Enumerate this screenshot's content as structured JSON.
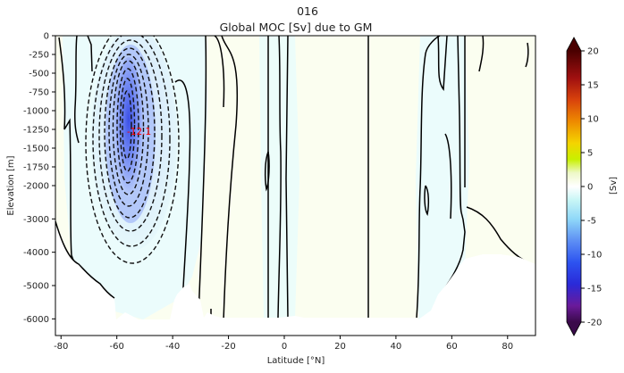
{
  "chart_data": {
    "type": "contour",
    "title_line1": "016",
    "title_line2": "Global MOC [Sv] due to GM",
    "xlabel": "Latitude [°N]",
    "ylabel": "Elevation [m]",
    "xlim": [
      -82,
      90
    ],
    "x_ticks": [
      -80,
      -60,
      -40,
      -20,
      0,
      20,
      40,
      60,
      80
    ],
    "y_ticks": [
      0,
      -250,
      -500,
      -750,
      -1000,
      -1250,
      -1500,
      -1750,
      -2000,
      -3000,
      -4000,
      -5000,
      -6000
    ],
    "y_scale": "piecewise: 0 to -2000 stretched, -2000 to -6500 compressed",
    "min_label": "-12.1",
    "min_label_color": "#ff0000",
    "min_location": {
      "lat": -54,
      "elev": -1270
    },
    "colorbar": {
      "label": "[Sv]",
      "range": [
        -20,
        20
      ],
      "ticks": [
        20,
        15,
        10,
        5,
        0,
        -5,
        -10,
        -15,
        -20
      ],
      "extend": "both"
    },
    "palette": {
      "deep_negative": "#3a1f7a",
      "strong_negative": "#5a6cf0",
      "mid_negative": "#9fb6f8",
      "weak_negative": "#cfe0fb",
      "slight_negative": "#e6fbfb",
      "slight_positive": "#fbfef0",
      "strong_positive": "#4a0000"
    }
  }
}
